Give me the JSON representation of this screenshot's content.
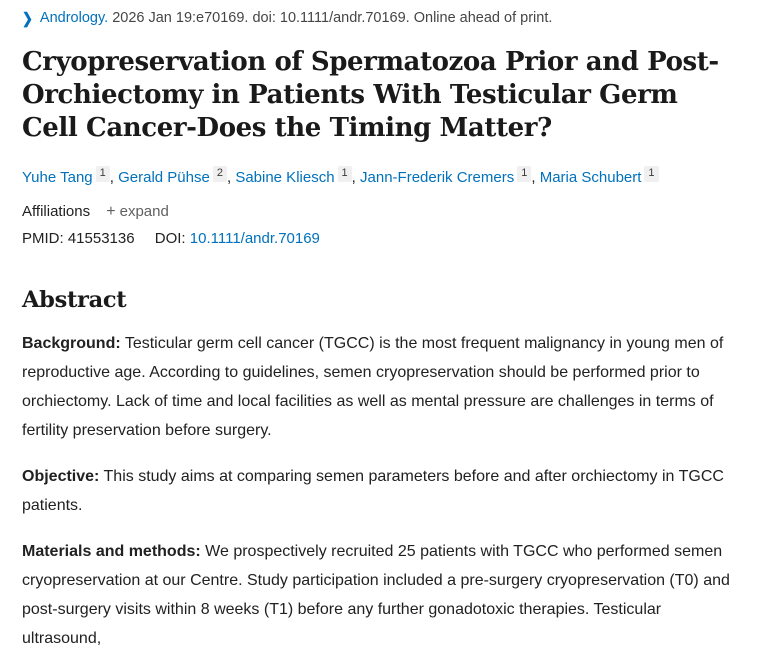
{
  "icons": {
    "chevron": "❯",
    "plus": "+"
  },
  "citation": {
    "journal_link": "Andrology.",
    "rest": "2026 Jan 19:e70169. doi: 10.1111/andr.70169. Online ahead of print."
  },
  "title": "Cryopreservation of Spermatozoa Prior and Post-Orchiectomy in Patients With Testicular Germ Cell Cancer-Does the Timing Matter?",
  "authors": [
    {
      "name": "Yuhe Tang",
      "sup": "1",
      "sep": ", "
    },
    {
      "name": "Gerald Pühse",
      "sup": "2",
      "sep": ", "
    },
    {
      "name": "Sabine Kliesch",
      "sup": "1",
      "sep": ", "
    },
    {
      "name": "Jann-Frederik Cremers",
      "sup": "1",
      "sep": ", "
    },
    {
      "name": "Maria Schubert",
      "sup": "1",
      "sep": ""
    }
  ],
  "affiliations": {
    "label": "Affiliations",
    "expand_label": "expand"
  },
  "ids": {
    "pmid_label": "PMID:",
    "pmid_value": "41553136",
    "doi_label": "DOI:",
    "doi_link": "10.1111/andr.70169"
  },
  "abstract": {
    "heading": "Abstract",
    "sections": [
      {
        "label": "Background:",
        "text": "Testicular germ cell cancer (TGCC) is the most frequent malignancy in young men of reproductive age. According to guidelines, semen cryopreservation should be performed prior to orchiectomy. Lack of time and local facilities as well as mental pressure are challenges in terms of fertility preservation before surgery."
      },
      {
        "label": "Objective:",
        "text": "This study aims at comparing semen parameters before and after orchiectomy in TGCC patients."
      },
      {
        "label": "Materials and methods:",
        "text": "We prospectively recruited 25 patients with TGCC who performed semen cryopreservation at our Centre. Study participation included a pre-surgery cryopreservation (T0) and post-surgery visits within 8 weeks (T1) before any further gonadotoxic therapies. Testicular ultrasound,"
      }
    ]
  },
  "colors": {
    "link_blue": "#0071bc",
    "text_dark": "#212121",
    "muted_gray": "#616161",
    "sup_badge_bg": "#f0f0f0"
  }
}
